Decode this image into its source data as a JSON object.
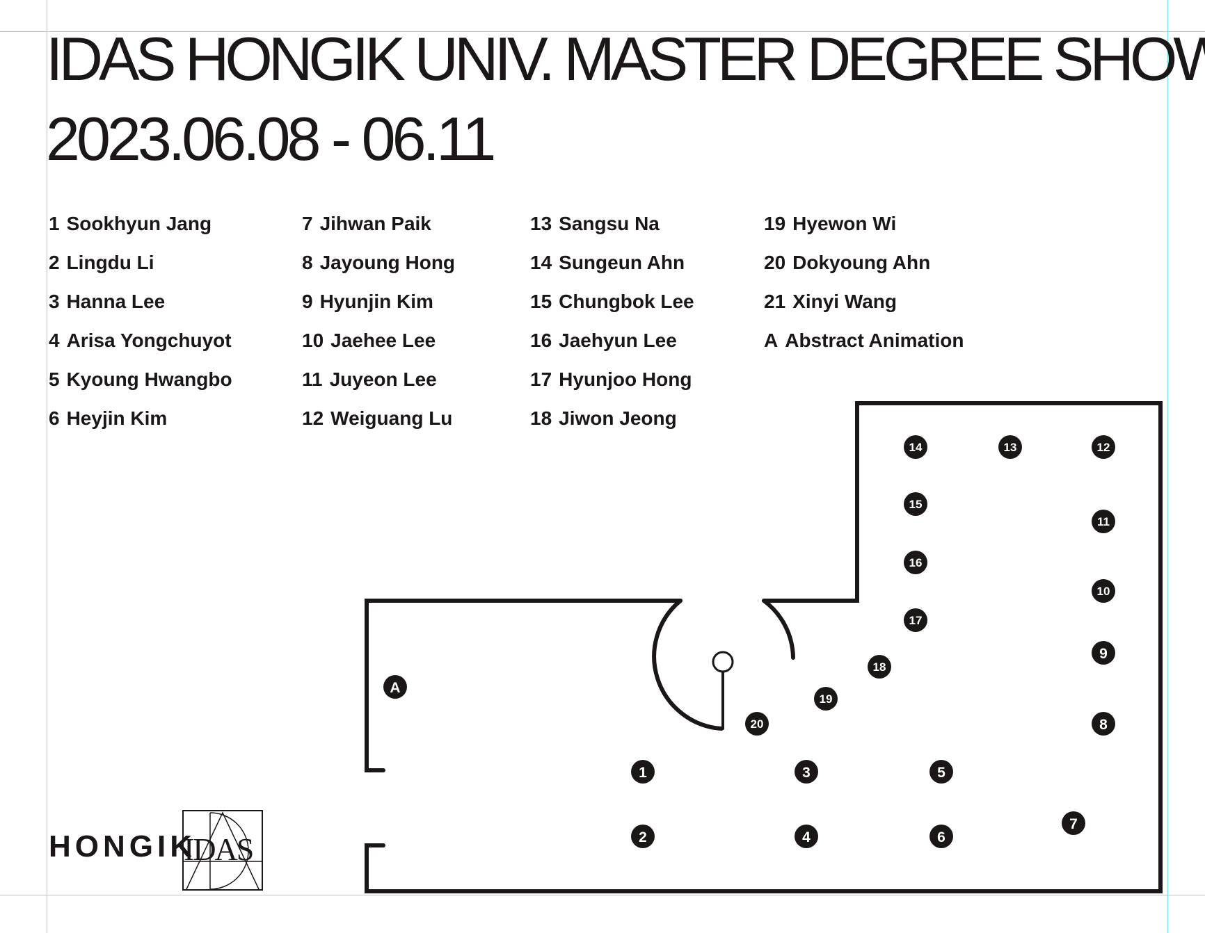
{
  "header": {
    "title": "IDAS HONGIK UNIV.  MASTER DEGREE SHOW",
    "date": "2023.06.08 - 06.11"
  },
  "legend": {
    "columns": [
      [
        {
          "num": "1",
          "name": "Sookhyun Jang"
        },
        {
          "num": "2",
          "name": "Lingdu Li"
        },
        {
          "num": "3",
          "name": "Hanna Lee"
        },
        {
          "num": "4",
          "name": "Arisa Yongchuyot"
        },
        {
          "num": "5",
          "name": "Kyoung Hwangbo"
        },
        {
          "num": "6",
          "name": "Heyjin Kim"
        }
      ],
      [
        {
          "num": "7",
          "name": "Jihwan Paik"
        },
        {
          "num": "8",
          "name": "Jayoung Hong"
        },
        {
          "num": "9",
          "name": "Hyunjin Kim"
        },
        {
          "num": "10",
          "name": "Jaehee Lee"
        },
        {
          "num": "11",
          "name": "Juyeon Lee"
        },
        {
          "num": "12",
          "name": "Weiguang Lu"
        }
      ],
      [
        {
          "num": "13",
          "name": "Sangsu Na"
        },
        {
          "num": "14",
          "name": "Sungeun Ahn"
        },
        {
          "num": "15",
          "name": "Chungbok Lee"
        },
        {
          "num": "16",
          "name": "Jaehyun Lee"
        },
        {
          "num": "17",
          "name": "Hyunjoo Hong"
        },
        {
          "num": "18",
          "name": "Jiwon Jeong"
        }
      ],
      [
        {
          "num": "19",
          "name": "Hyewon Wi"
        },
        {
          "num": "20",
          "name": "Dokyoung Ahn"
        },
        {
          "num": "21",
          "name": "Xinyi Wang"
        },
        {
          "num": "A",
          "name": "Abstract Animation"
        }
      ]
    ]
  },
  "floorplan": {
    "markers": [
      "1",
      "2",
      "3",
      "4",
      "5",
      "6",
      "7",
      "8",
      "9",
      "10",
      "11",
      "12",
      "13",
      "14",
      "15",
      "16",
      "17",
      "18",
      "19",
      "20",
      "A"
    ]
  },
  "logo": {
    "word": "HONGIK",
    "mark": "IDAS"
  },
  "colors": {
    "ink": "#1b1716",
    "guide": "#66e6ee",
    "background": "#ffffff"
  }
}
